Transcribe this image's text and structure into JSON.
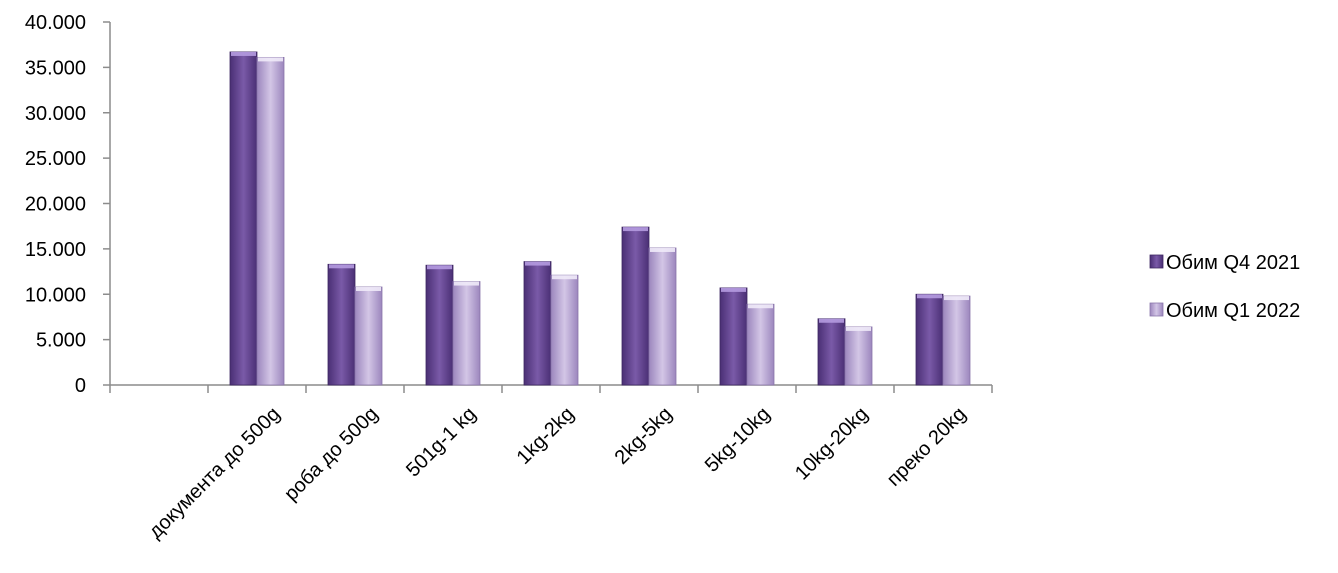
{
  "chart_data": {
    "type": "bar",
    "title": "",
    "xlabel": "",
    "ylabel": "",
    "categories": [
      "",
      "документа до 500g",
      "роба до 500g",
      "501g-1 kg",
      "1kg-2kg",
      "2kg-5kg",
      "5kg-10kg",
      "10kg-20kg",
      "преко 20kg"
    ],
    "series": [
      {
        "name": "Обим Q4  2021",
        "color": "#6a4a93",
        "values": [
          null,
          36700,
          13300,
          13200,
          13600,
          17400,
          10700,
          7300,
          10000
        ]
      },
      {
        "name": "Обим Q1  2022",
        "color": "#b9a6d3",
        "values": [
          null,
          36100,
          10800,
          11400,
          12100,
          15100,
          8900,
          6400,
          9800
        ]
      }
    ],
    "ylim": [
      0,
      40000
    ],
    "yticks": [
      "0",
      "5.000",
      "10.000",
      "15.000",
      "20.000",
      "25.000",
      "30.000",
      "35.000",
      "40.000"
    ],
    "grid": false,
    "legend_position": "right"
  }
}
